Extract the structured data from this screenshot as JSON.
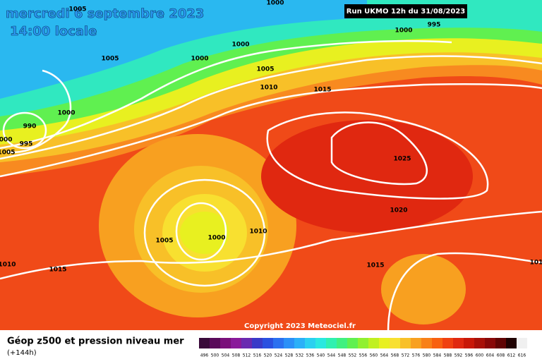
{
  "header": {
    "date": "mercredi 6 septembre 2023",
    "time": "14:00 locale",
    "run": "Run UKMO 12h du 31/08/2023"
  },
  "isobars": [
    1005,
    1000,
    995,
    1000,
    1000,
    1005,
    1000,
    1005,
    1010,
    1015,
    1000,
    990,
    995,
    1000,
    1005,
    1025,
    1020,
    1010,
    1005,
    1000,
    1010,
    1015,
    1015,
    101
  ],
  "copyright": "Copyright 2023 Meteociel.fr",
  "footer": {
    "title": "Géop z500 et pression niveau mer",
    "subtitle": "(+144h)"
  },
  "legend": {
    "labels": [
      496,
      500,
      504,
      508,
      512,
      516,
      520,
      524,
      528,
      532,
      536,
      540,
      544,
      548,
      552,
      556,
      560,
      564,
      568,
      572,
      576,
      580,
      584,
      588,
      592,
      596,
      600,
      604,
      608,
      612,
      616
    ],
    "colors": [
      "#3a0a3a",
      "#5a0a5a",
      "#7a107a",
      "#8a1a9a",
      "#6a2ab0",
      "#3a3ac8",
      "#2a50e0",
      "#2a70f0",
      "#2a90f8",
      "#2ab0f8",
      "#2ad0f0",
      "#2ae8e0",
      "#30f0b0",
      "#40f080",
      "#60f050",
      "#90f030",
      "#c0f020",
      "#e8f020",
      "#f8e030",
      "#f8c028",
      "#f8a020",
      "#f88018",
      "#f86010",
      "#f04010",
      "#e02810",
      "#c81808",
      "#a81008",
      "#880808",
      "#600404",
      "#200202",
      "#f0f0f0"
    ]
  }
}
